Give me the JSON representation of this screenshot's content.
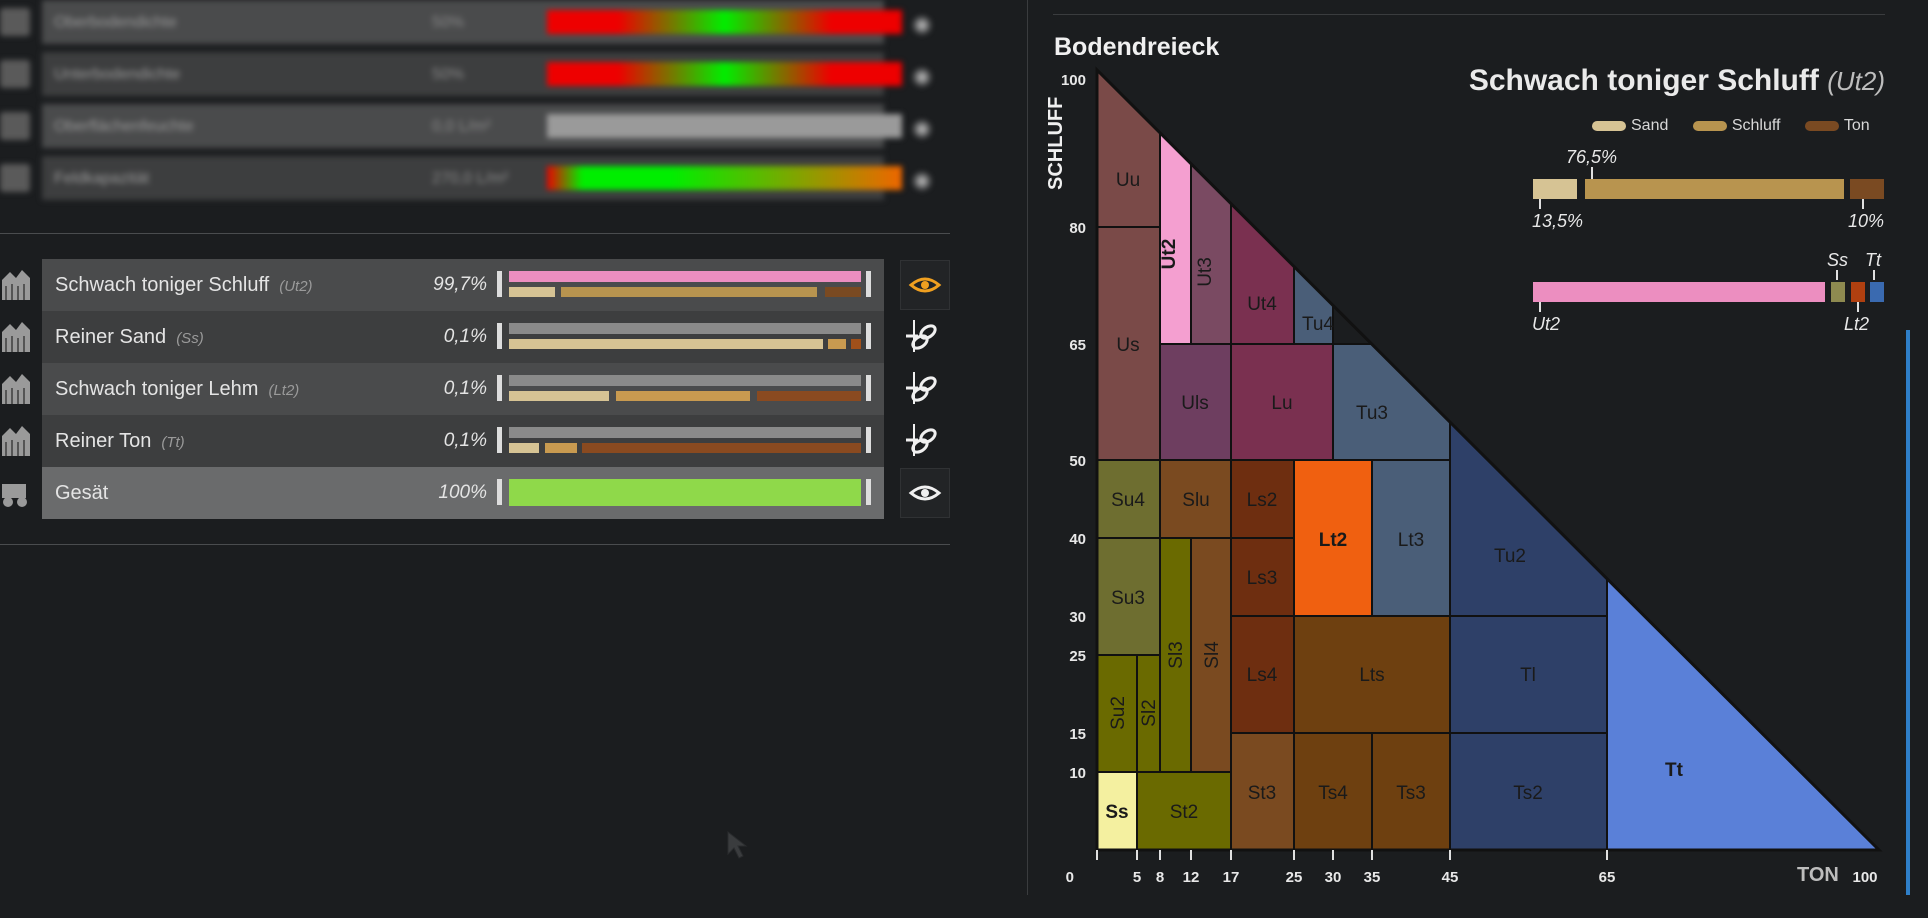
{
  "blurred_rows": [
    {
      "label": "Oberbodendichte",
      "value": "50%"
    },
    {
      "label": "Unterbodendichte",
      "value": "50%"
    },
    {
      "label": "Oberflächenfeuchte",
      "value": "0,0 L/m²"
    },
    {
      "label": "Feldkapazität",
      "value": "270,0 L/m²"
    }
  ],
  "soil_rows": [
    {
      "name": "Schwach toniger Schluff",
      "code": "(Ut2)",
      "pct": "99,7%",
      "action": "eye-icon"
    },
    {
      "name": "Reiner Sand",
      "code": "(Ss)",
      "pct": "0,1%",
      "action": "link-icon"
    },
    {
      "name": "Schwach toniger Lehm",
      "code": "(Lt2)",
      "pct": "0,1%",
      "action": "link-icon"
    },
    {
      "name": "Reiner Ton",
      "code": "(Tt)",
      "pct": "0,1%",
      "action": "link-icon"
    }
  ],
  "seeded_row": {
    "name": "Gesät",
    "pct": "100%",
    "level": 1.0,
    "color": "#8fd94a"
  },
  "chart": {
    "title": "Bodendreieck",
    "y_label": "SCHLUFF",
    "x_label": "TON",
    "y_ticks": [
      "100",
      "80",
      "65",
      "50",
      "40",
      "30",
      "25",
      "15",
      "10",
      "0"
    ],
    "x_ticks": [
      "5",
      "8",
      "12",
      "17",
      "25",
      "30",
      "35",
      "45",
      "65",
      "100"
    ]
  },
  "selected_soil": {
    "name": "Schwach toniger Schluff",
    "code": "(Ut2)",
    "legend": [
      "Sand",
      "Schluff",
      "Ton"
    ],
    "sand_pct": "13,5%",
    "schluff_pct": "76,5%",
    "ton_pct": "10%",
    "mix_labels_top": [
      "Ss",
      "Tt"
    ],
    "mix_labels_bottom": [
      "Ut2",
      "Lt2"
    ]
  },
  "colors": {
    "sand": "#d6c394",
    "schluff": "#b8944f",
    "ton": "#7a4a22",
    "ut2_pink": "#ec8ec0",
    "seeded_green": "#8fd94a",
    "eye_active": "#f0a020"
  },
  "regions": [
    {
      "code": "Uu"
    },
    {
      "code": "Us"
    },
    {
      "code": "Ut2"
    },
    {
      "code": "Ut3"
    },
    {
      "code": "Ut4"
    },
    {
      "code": "Tu4"
    },
    {
      "code": "Uls"
    },
    {
      "code": "Lu"
    },
    {
      "code": "Tu3"
    },
    {
      "code": "Tu2"
    },
    {
      "code": "Su4"
    },
    {
      "code": "Slu"
    },
    {
      "code": "Ls2"
    },
    {
      "code": "Lt2"
    },
    {
      "code": "Lt3"
    },
    {
      "code": "Su3"
    },
    {
      "code": "Sl3"
    },
    {
      "code": "Sl4"
    },
    {
      "code": "Ls3"
    },
    {
      "code": "Ls4"
    },
    {
      "code": "Lts"
    },
    {
      "code": "Tl"
    },
    {
      "code": "Su2"
    },
    {
      "code": "Sl2"
    },
    {
      "code": "Ss"
    },
    {
      "code": "St2"
    },
    {
      "code": "St3"
    },
    {
      "code": "Ts4"
    },
    {
      "code": "Ts3"
    },
    {
      "code": "Ts2"
    },
    {
      "code": "Tt"
    }
  ]
}
